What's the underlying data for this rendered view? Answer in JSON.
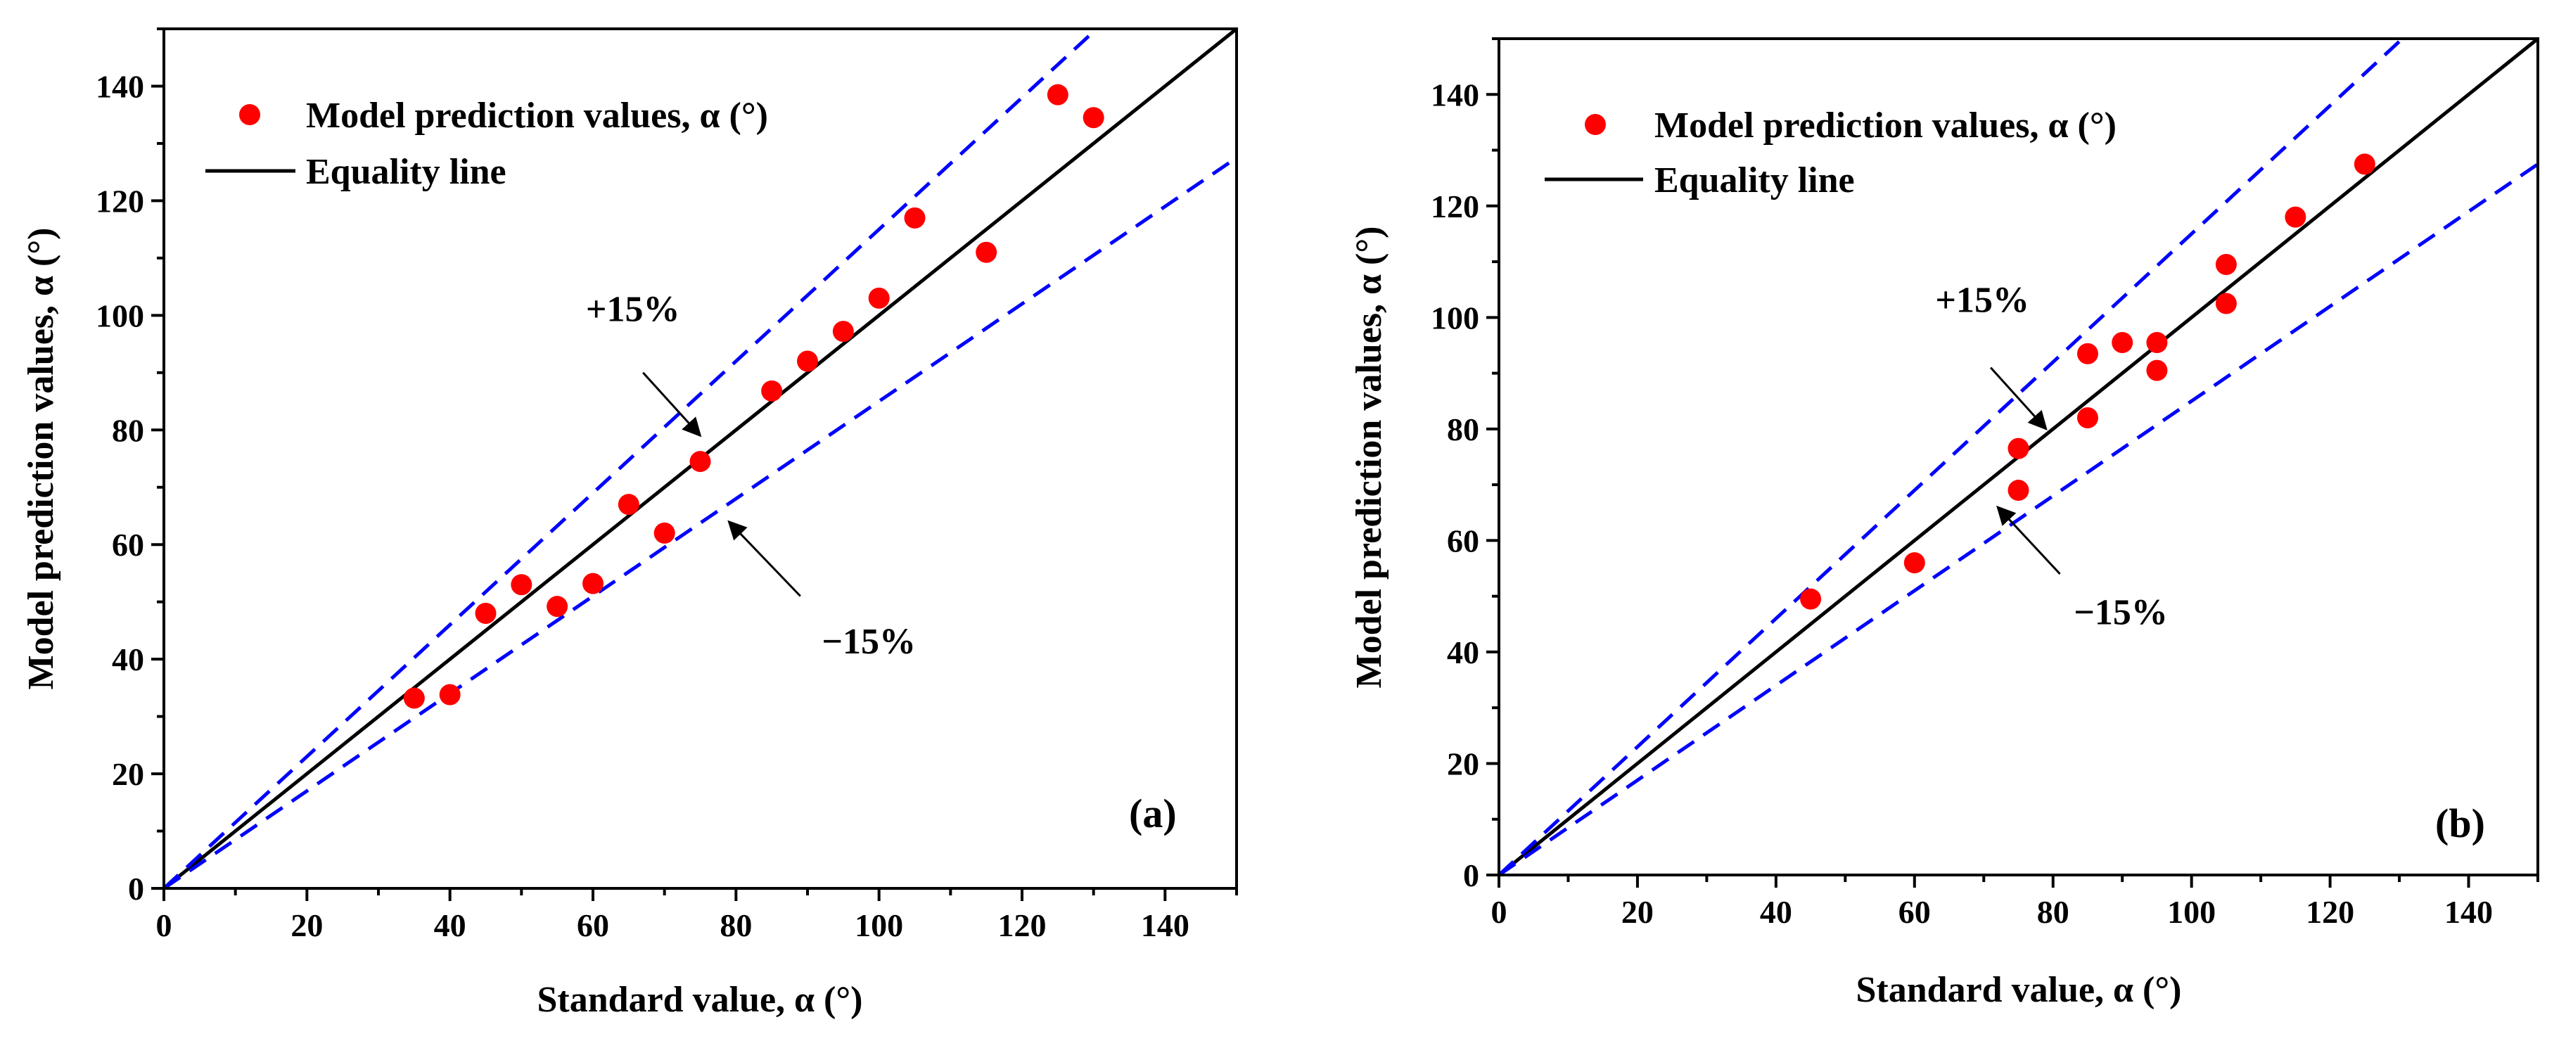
{
  "chart_data": [
    {
      "type": "scatter",
      "panel_label": "(a)",
      "xlabel": "Standard value, α (°)",
      "ylabel": "Model prediction values, α (°)",
      "xlim": [
        0,
        150
      ],
      "ylim": [
        0,
        150
      ],
      "xticks": [
        0,
        20,
        40,
        60,
        80,
        100,
        120,
        140
      ],
      "yticks": [
        0,
        20,
        40,
        60,
        80,
        100,
        120,
        140
      ],
      "legend": {
        "placement": "top-left",
        "scatter_label": "Model prediction values, α (°)",
        "line_label": "Equality line"
      },
      "series": [
        {
          "name": "Model prediction values, α (°)",
          "kind": "points",
          "color": "#ff0000",
          "x": [
            35,
            40,
            45,
            50,
            55,
            60,
            65,
            70,
            75,
            85,
            90,
            95,
            100,
            105,
            115,
            125,
            130
          ],
          "y": [
            33.2,
            33.8,
            48,
            53,
            49.2,
            53.2,
            67,
            62,
            74.5,
            86.8,
            92,
            97.2,
            103,
            117,
            111,
            138.5,
            134.5
          ]
        },
        {
          "name": "Equality line",
          "kind": "line",
          "color": "#000000",
          "slope": 1.0
        },
        {
          "name": "+15%",
          "kind": "dashed-line",
          "color": "#0000ff",
          "slope": 1.15
        },
        {
          "name": "-15%",
          "kind": "dashed-line",
          "color": "#0000ff",
          "slope": 0.85
        }
      ],
      "annotations": [
        {
          "text": "+15%",
          "x": 59,
          "y": 99,
          "arrow_from": [
            67,
            90
          ],
          "arrow_to": [
            75,
            79
          ]
        },
        {
          "text": "−15%",
          "x": 92,
          "y": 41,
          "arrow_from": [
            89,
            51
          ],
          "arrow_to": [
            79,
            64
          ]
        }
      ]
    },
    {
      "type": "scatter",
      "panel_label": "(b)",
      "xlabel": "Standard value, α (°)",
      "ylabel": "Model prediction values, α (°)",
      "xlim": [
        0,
        150
      ],
      "ylim": [
        0,
        150
      ],
      "xticks": [
        0,
        20,
        40,
        60,
        80,
        100,
        120,
        140
      ],
      "yticks": [
        0,
        20,
        40,
        60,
        80,
        100,
        120,
        140
      ],
      "legend": {
        "placement": "top-left",
        "scatter_label": "Model prediction values, α (°)",
        "line_label": "Equality line"
      },
      "series": [
        {
          "name": "Model prediction values, α (°)",
          "kind": "points",
          "color": "#ff0000",
          "x": [
            45,
            60,
            75,
            75,
            85,
            85,
            90,
            95,
            95,
            105,
            105,
            115,
            125
          ],
          "y": [
            49.5,
            56,
            76.5,
            69,
            93.5,
            82,
            95.5,
            95.5,
            90.5,
            109.5,
            102.5,
            118,
            127.5
          ]
        },
        {
          "name": "Equality line",
          "kind": "line",
          "color": "#000000",
          "slope": 1.0
        },
        {
          "name": "+15%",
          "kind": "dashed-line",
          "color": "#0000ff",
          "slope": 1.15
        },
        {
          "name": "-15%",
          "kind": "dashed-line",
          "color": "#0000ff",
          "slope": 0.85
        }
      ],
      "annotations": [
        {
          "text": "+15%",
          "x": 63,
          "y": 101,
          "arrow_from": [
            71,
            91
          ],
          "arrow_to": [
            79,
            80
          ]
        },
        {
          "text": "−15%",
          "x": 83,
          "y": 45,
          "arrow_from": [
            81,
            54
          ],
          "arrow_to": [
            72,
            66
          ]
        }
      ]
    }
  ]
}
